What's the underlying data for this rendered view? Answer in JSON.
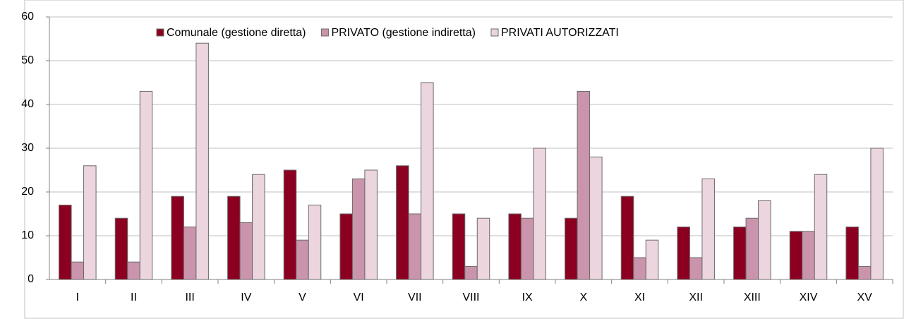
{
  "chart_data": {
    "type": "bar",
    "categories": [
      "I",
      "II",
      "III",
      "IV",
      "V",
      "VI",
      "VII",
      "VIII",
      "IX",
      "X",
      "XI",
      "XII",
      "XIII",
      "XIV",
      "XV"
    ],
    "series": [
      {
        "name": "Comunale (gestione diretta)",
        "color": "#8b0020",
        "values": [
          17,
          14,
          19,
          19,
          25,
          15,
          26,
          15,
          15,
          14,
          19,
          12,
          12,
          11,
          12
        ]
      },
      {
        "name": "PRIVATO (gestione indiretta)",
        "color": "#c994ac",
        "values": [
          4,
          4,
          12,
          13,
          9,
          23,
          15,
          3,
          14,
          43,
          5,
          5,
          14,
          11,
          3
        ]
      },
      {
        "name": "PRIVATI AUTORIZZATI",
        "color": "#ecd5df",
        "values": [
          26,
          43,
          54,
          24,
          17,
          25,
          45,
          14,
          30,
          28,
          9,
          23,
          18,
          24,
          30
        ]
      }
    ],
    "ylim": [
      0,
      60
    ],
    "yticks": [
      0,
      10,
      20,
      30,
      40,
      50,
      60
    ],
    "grid": true,
    "legend": "top"
  }
}
